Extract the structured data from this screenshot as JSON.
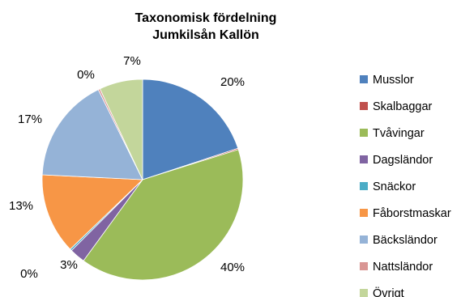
{
  "chart_data": {
    "type": "pie",
    "title": "Taxonomisk fördelning",
    "subtitle": "Jumkilsån Kallön",
    "slices": [
      {
        "name": "Musslor",
        "value": 20,
        "label": "20%",
        "color": "#4F81BD"
      },
      {
        "name": "Skalbaggar",
        "value": 0.2,
        "label": "",
        "color": "#C0504D"
      },
      {
        "name": "Tvåvingar",
        "value": 40,
        "label": "40%",
        "color": "#9BBB59"
      },
      {
        "name": "Dagsländor",
        "value": 2.5,
        "label": "3%",
        "color": "#8064A2"
      },
      {
        "name": "Snäckor",
        "value": 0.3,
        "label": "0%",
        "color": "#4BACC6"
      },
      {
        "name": "Fåborstmaskar",
        "value": 13,
        "label": "13%",
        "color": "#F79646"
      },
      {
        "name": "Bäcksländor",
        "value": 17,
        "label": "17%",
        "color": "#95B3D7"
      },
      {
        "name": "Nattsländor",
        "value": 0.3,
        "label": "0%",
        "color": "#D99694"
      },
      {
        "name": "Övrigt",
        "value": 7,
        "label": "7%",
        "color": "#C3D69B"
      }
    ],
    "legend_position": "right"
  }
}
